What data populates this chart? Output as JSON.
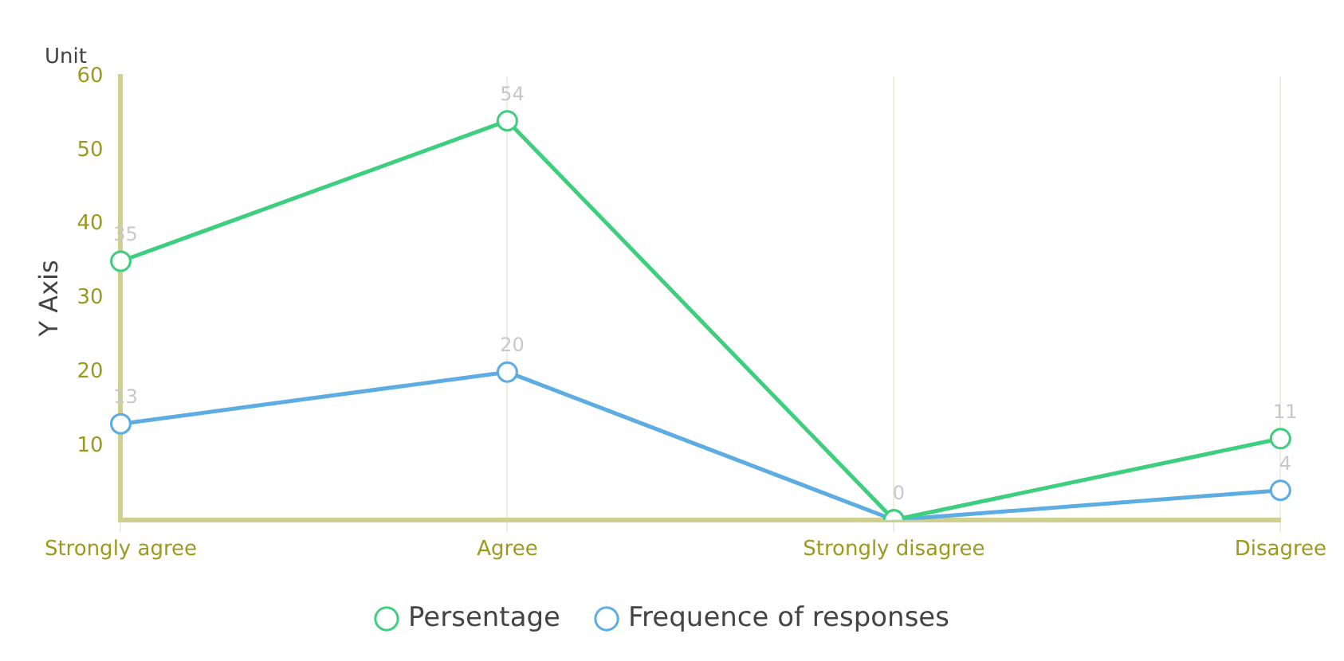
{
  "chart_data": {
    "type": "line",
    "ylabel": "Y Axis",
    "annotations": [
      "Unit"
    ],
    "categories": [
      "Strongly agree",
      "Agree",
      "Strongly disagree",
      "Disagree"
    ],
    "series": [
      {
        "name": "Persentage",
        "color": "#3ecf7e",
        "values": [
          35,
          54,
          0,
          11
        ],
        "value_labels": [
          "35",
          "54",
          "0",
          "11"
        ]
      },
      {
        "name": "Frequence of responses",
        "color": "#5dade2",
        "values": [
          13,
          20,
          0,
          4
        ],
        "value_labels": [
          "13",
          "20",
          null,
          "4"
        ]
      }
    ],
    "ylim": [
      0,
      60
    ],
    "yticks": [
      10,
      20,
      30,
      40,
      50,
      60
    ],
    "grid": "x",
    "legend": "bottom",
    "marker": "circle",
    "line_style": "solid"
  }
}
